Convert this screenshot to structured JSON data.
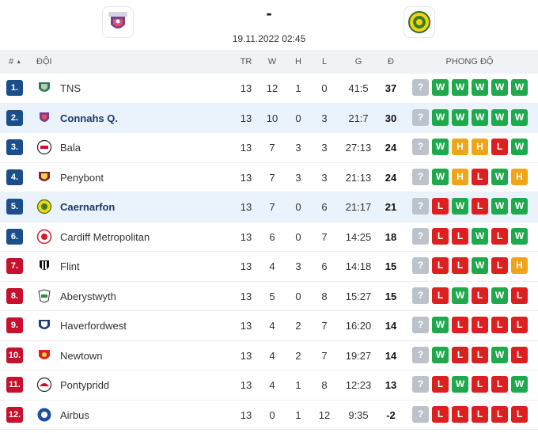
{
  "match": {
    "score": "-",
    "date": "19.11.2022 02:45",
    "home_logo": "connahs-quay-crest",
    "away_logo": "caernarfon-crest"
  },
  "headers": {
    "rank": "#",
    "team": "ĐỘI",
    "played": "TR",
    "won": "W",
    "drawn": "H",
    "lost": "L",
    "goals": "G",
    "points": "Đ",
    "form": "PHONG ĐỘ"
  },
  "colors": {
    "rank_blue": "#1b4f8c",
    "rank_red": "#c8102e",
    "win": "#1fa94c",
    "loss": "#dc1f1f",
    "draw": "#f0a418",
    "next": "#bcc2ca",
    "highlight": "#eaf2fc"
  },
  "rows": [
    {
      "rank": "1.",
      "team": "TNS",
      "tr": "13",
      "w": "12",
      "h": "1",
      "l": "0",
      "g": "41:5",
      "pts": "37",
      "form": [
        "?",
        "W",
        "W",
        "W",
        "W",
        "W"
      ],
      "rank_color": "blue",
      "highlight": false
    },
    {
      "rank": "2.",
      "team": "Connahs Q.",
      "tr": "13",
      "w": "10",
      "h": "0",
      "l": "3",
      "g": "21:7",
      "pts": "30",
      "form": [
        "?",
        "W",
        "W",
        "W",
        "W",
        "W"
      ],
      "rank_color": "blue",
      "highlight": true
    },
    {
      "rank": "3.",
      "team": "Bala",
      "tr": "13",
      "w": "7",
      "h": "3",
      "l": "3",
      "g": "27:13",
      "pts": "24",
      "form": [
        "?",
        "W",
        "H",
        "H",
        "L",
        "W"
      ],
      "rank_color": "blue",
      "highlight": false
    },
    {
      "rank": "4.",
      "team": "Penybont",
      "tr": "13",
      "w": "7",
      "h": "3",
      "l": "3",
      "g": "21:13",
      "pts": "24",
      "form": [
        "?",
        "W",
        "H",
        "L",
        "W",
        "H"
      ],
      "rank_color": "blue",
      "highlight": false
    },
    {
      "rank": "5.",
      "team": "Caernarfon",
      "tr": "13",
      "w": "7",
      "h": "0",
      "l": "6",
      "g": "21:17",
      "pts": "21",
      "form": [
        "?",
        "L",
        "W",
        "L",
        "W",
        "W"
      ],
      "rank_color": "blue",
      "highlight": true
    },
    {
      "rank": "6.",
      "team": "Cardiff Metropolitan",
      "tr": "13",
      "w": "6",
      "h": "0",
      "l": "7",
      "g": "14:25",
      "pts": "18",
      "form": [
        "?",
        "L",
        "L",
        "W",
        "L",
        "W"
      ],
      "rank_color": "blue",
      "highlight": false
    },
    {
      "rank": "7.",
      "team": "Flint",
      "tr": "13",
      "w": "4",
      "h": "3",
      "l": "6",
      "g": "14:18",
      "pts": "15",
      "form": [
        "?",
        "L",
        "L",
        "W",
        "L",
        "H"
      ],
      "rank_color": "red",
      "highlight": false
    },
    {
      "rank": "8.",
      "team": "Aberystwyth",
      "tr": "13",
      "w": "5",
      "h": "0",
      "l": "8",
      "g": "15:27",
      "pts": "15",
      "form": [
        "?",
        "L",
        "W",
        "L",
        "W",
        "L"
      ],
      "rank_color": "red",
      "highlight": false
    },
    {
      "rank": "9.",
      "team": "Haverfordwest",
      "tr": "13",
      "w": "4",
      "h": "2",
      "l": "7",
      "g": "16:20",
      "pts": "14",
      "form": [
        "?",
        "W",
        "L",
        "L",
        "L",
        "L"
      ],
      "rank_color": "red",
      "highlight": false
    },
    {
      "rank": "10.",
      "team": "Newtown",
      "tr": "13",
      "w": "4",
      "h": "2",
      "l": "7",
      "g": "19:27",
      "pts": "14",
      "form": [
        "?",
        "W",
        "L",
        "L",
        "W",
        "L"
      ],
      "rank_color": "red",
      "highlight": false
    },
    {
      "rank": "11.",
      "team": "Pontypridd",
      "tr": "13",
      "w": "4",
      "h": "1",
      "l": "8",
      "g": "12:23",
      "pts": "13",
      "form": [
        "?",
        "L",
        "W",
        "L",
        "L",
        "W"
      ],
      "rank_color": "red",
      "highlight": false
    },
    {
      "rank": "12.",
      "team": "Airbus",
      "tr": "13",
      "w": "0",
      "h": "1",
      "l": "12",
      "g": "9:35",
      "pts": "-2",
      "form": [
        "?",
        "L",
        "L",
        "L",
        "L",
        "L"
      ],
      "rank_color": "red",
      "highlight": false
    }
  ]
}
